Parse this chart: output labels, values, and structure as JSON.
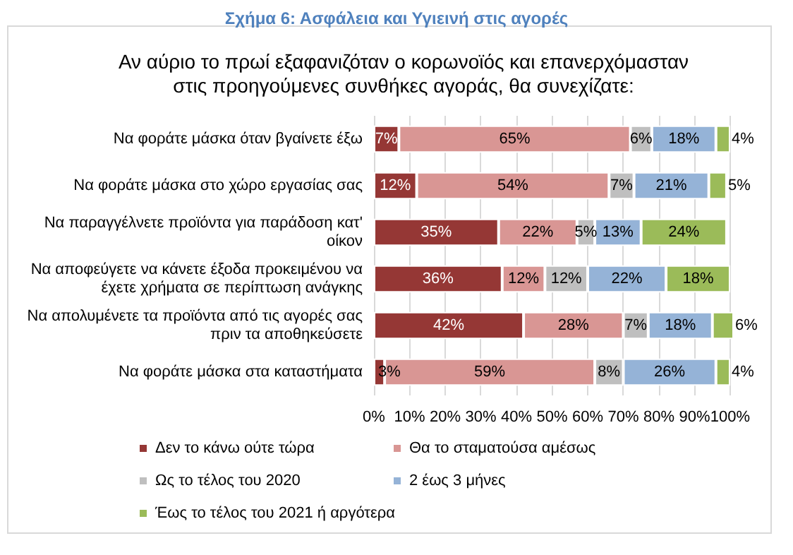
{
  "chart_data": {
    "type": "bar",
    "orientation": "horizontal",
    "stacked": true,
    "title": "Σχήμα 6: Ασφάλεια και Υγιεινή στις αγορές",
    "subtitle": "Αν αύριο το πρωί εξαφανιζόταν ο κορωνοϊός και επανερχόμασταν στις προηγούμενες συνθήκες αγοράς, θα συνεχίζατε:",
    "categories": [
      "Να φοράτε μάσκα όταν βγαίνετε έξω",
      "Να φοράτε μάσκα στο χώρο εργασίας σας",
      "Να παραγγέλνετε προϊόντα για παράδοση κατ' οίκον",
      "Να αποφεύγετε να κάνετε έξοδα προκειμένου να έχετε χρήματα σε περίπτωση ανάγκης",
      "Να απολυμένετε τα προϊόντα από τις αγορές σας πριν τα αποθηκεύσετε",
      "Να φοράτε μάσκα στα καταστήματα"
    ],
    "series": [
      {
        "name": "Δεν το κάνω ούτε τώρα",
        "color": "#953735",
        "values": [
          7,
          12,
          35,
          36,
          42,
          3
        ],
        "value_labels": [
          "7%",
          "12%",
          "35%",
          "36%",
          "42%",
          "3%"
        ]
      },
      {
        "name": "Θα το σταματούσα αμέσως",
        "color": "#d99694",
        "values": [
          65,
          54,
          22,
          12,
          28,
          59
        ],
        "value_labels": [
          "65%",
          "54%",
          "22%",
          "12%",
          "28%",
          "59%"
        ]
      },
      {
        "name": "Ως το τέλος του 2020",
        "color": "#bfbfbf",
        "values": [
          6,
          7,
          5,
          12,
          7,
          8
        ],
        "value_labels": [
          "6%",
          "7%",
          "5%",
          "12%",
          "7%",
          "8%"
        ]
      },
      {
        "name": "2 έως 3 μήνες",
        "color": "#95b3d7",
        "values": [
          18,
          21,
          13,
          22,
          18,
          26
        ],
        "value_labels": [
          "18%",
          "21%",
          "13%",
          "22%",
          "18%",
          "26%"
        ]
      },
      {
        "name": "Έως το τέλος του 2021 ή αργότερα",
        "color": "#9bbb59",
        "values": [
          4,
          5,
          24,
          18,
          6,
          4
        ],
        "value_labels": [
          "4%",
          "5%",
          "24%",
          "18%",
          "6%",
          "4%"
        ]
      }
    ],
    "xlim": [
      0,
      101
    ],
    "xticks": [
      {
        "value": 0,
        "label": "0%"
      },
      {
        "value": 10,
        "label": "10%"
      },
      {
        "value": 20,
        "label": "20%"
      },
      {
        "value": 30,
        "label": "30%"
      },
      {
        "value": 40,
        "label": "40%"
      },
      {
        "value": 50,
        "label": "50%"
      },
      {
        "value": 60,
        "label": "60%"
      },
      {
        "value": 70,
        "label": "70%"
      },
      {
        "value": 80,
        "label": "80%"
      },
      {
        "value": 90,
        "label": "90%"
      },
      {
        "value": 100,
        "label": "100%"
      }
    ],
    "grid": "x",
    "legend": "bottom"
  }
}
